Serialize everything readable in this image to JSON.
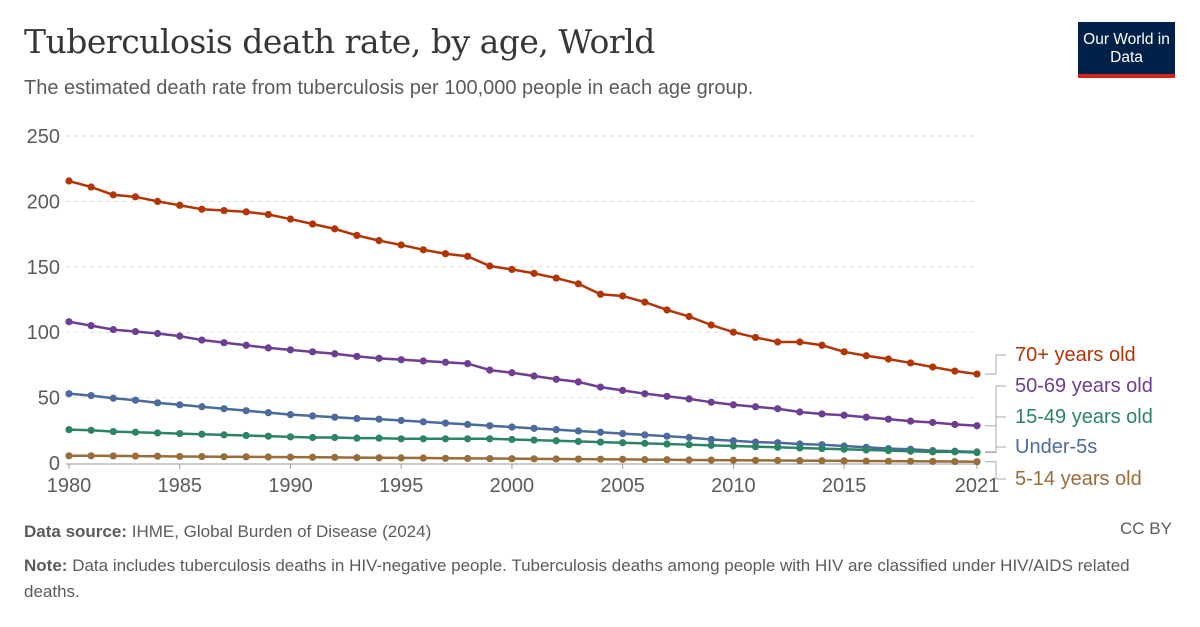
{
  "header": {
    "title": "Tuberculosis death rate, by age, World",
    "subtitle": "The estimated death rate from tuberculosis per 100,000 people in each age group.",
    "logo": "Our World in Data"
  },
  "footer": {
    "source_label": "Data source:",
    "source": "IHME, Global Burden of Disease (2024)",
    "license": "CC BY",
    "note_label": "Note:",
    "note": "Data includes tuberculosis deaths in HIV-negative people. Tuberculosis deaths among people with HIV are classified under HIV/AIDS related deaths."
  },
  "chart_data": {
    "type": "line",
    "title": "Tuberculosis death rate, by age, World",
    "xlim": [
      1980,
      2021
    ],
    "ylim": [
      0,
      250
    ],
    "yticks": [
      0,
      50,
      100,
      150,
      200,
      250
    ],
    "xticks": [
      1980,
      1985,
      1990,
      1995,
      2000,
      2005,
      2010,
      2015,
      2021
    ],
    "grid": "horizontal-dashed",
    "legend": "right-end-labels",
    "x": [
      1980,
      1981,
      1982,
      1983,
      1984,
      1985,
      1986,
      1987,
      1988,
      1989,
      1990,
      1991,
      1992,
      1993,
      1994,
      1995,
      1996,
      1997,
      1998,
      1999,
      2000,
      2001,
      2002,
      2003,
      2004,
      2005,
      2006,
      2007,
      2008,
      2009,
      2010,
      2011,
      2012,
      2013,
      2014,
      2015,
      2016,
      2017,
      2018,
      2019,
      2020,
      2021
    ],
    "series": [
      {
        "name": "70+ years old",
        "color": "#b13507",
        "values": [
          215.6,
          211,
          205,
          203.5,
          200,
          197,
          194,
          193,
          192,
          190,
          186.5,
          182.7,
          179,
          174,
          170,
          166.7,
          163,
          160,
          158,
          150.6,
          148,
          145,
          141.4,
          137,
          129,
          127.7,
          123,
          117,
          112,
          105.5,
          100,
          96,
          92.5,
          92.5,
          90,
          85,
          82,
          79.5,
          76.5,
          73.4,
          70.3,
          68
        ]
      },
      {
        "name": "50-69 years old",
        "color": "#6d3e91",
        "values": [
          108,
          105,
          102,
          100.5,
          99,
          97,
          94,
          92,
          90,
          88,
          86.5,
          85,
          83.5,
          81.5,
          80,
          79,
          78,
          77,
          76,
          71,
          69,
          66.5,
          64,
          62,
          58,
          55.5,
          53,
          51,
          49,
          46.5,
          44.5,
          43,
          41.5,
          39,
          37.5,
          36.5,
          35,
          33.5,
          32,
          31,
          29.5,
          28.5
        ]
      },
      {
        "name": "15-49 years old",
        "color": "#2c8465",
        "values": [
          25.5,
          25,
          24,
          23.5,
          23,
          22.5,
          22,
          21.5,
          21,
          20.5,
          20,
          19.5,
          19.5,
          19,
          19,
          18.5,
          18.5,
          18.5,
          18.5,
          18.5,
          18,
          17.5,
          17,
          16.5,
          16,
          15.5,
          15,
          14.5,
          14,
          13.5,
          13,
          12.5,
          12,
          11.5,
          11,
          10.5,
          10,
          9.5,
          9,
          8.5,
          8.5,
          8
        ]
      },
      {
        "name": "Under-5s",
        "color": "#4c6a9c",
        "values": [
          53,
          51.5,
          49.5,
          48,
          46,
          44.5,
          43,
          41.5,
          40,
          38.5,
          37,
          36,
          35,
          34,
          33.5,
          32.5,
          31.5,
          30.5,
          29.5,
          28.5,
          27.5,
          26.5,
          25.5,
          24.5,
          23.5,
          22.5,
          21.5,
          20.5,
          19.5,
          18,
          17,
          16,
          15.5,
          14.5,
          14,
          13,
          12,
          11,
          10.5,
          9.5,
          9,
          8.5
        ]
      },
      {
        "name": "5-14 years old",
        "color": "#996d39",
        "values": [
          5.5,
          5.5,
          5.4,
          5.3,
          5.2,
          5,
          4.9,
          4.8,
          4.7,
          4.6,
          4.5,
          4.4,
          4.3,
          4.1,
          4,
          3.9,
          3.8,
          3.6,
          3.5,
          3.4,
          3.3,
          3.2,
          3.1,
          3,
          2.9,
          2.8,
          2.6,
          2.5,
          2.3,
          2.2,
          2.1,
          2,
          1.9,
          1.8,
          1.7,
          1.6,
          1.5,
          1.4,
          1.3,
          1.2,
          1.1,
          1
        ]
      }
    ]
  }
}
